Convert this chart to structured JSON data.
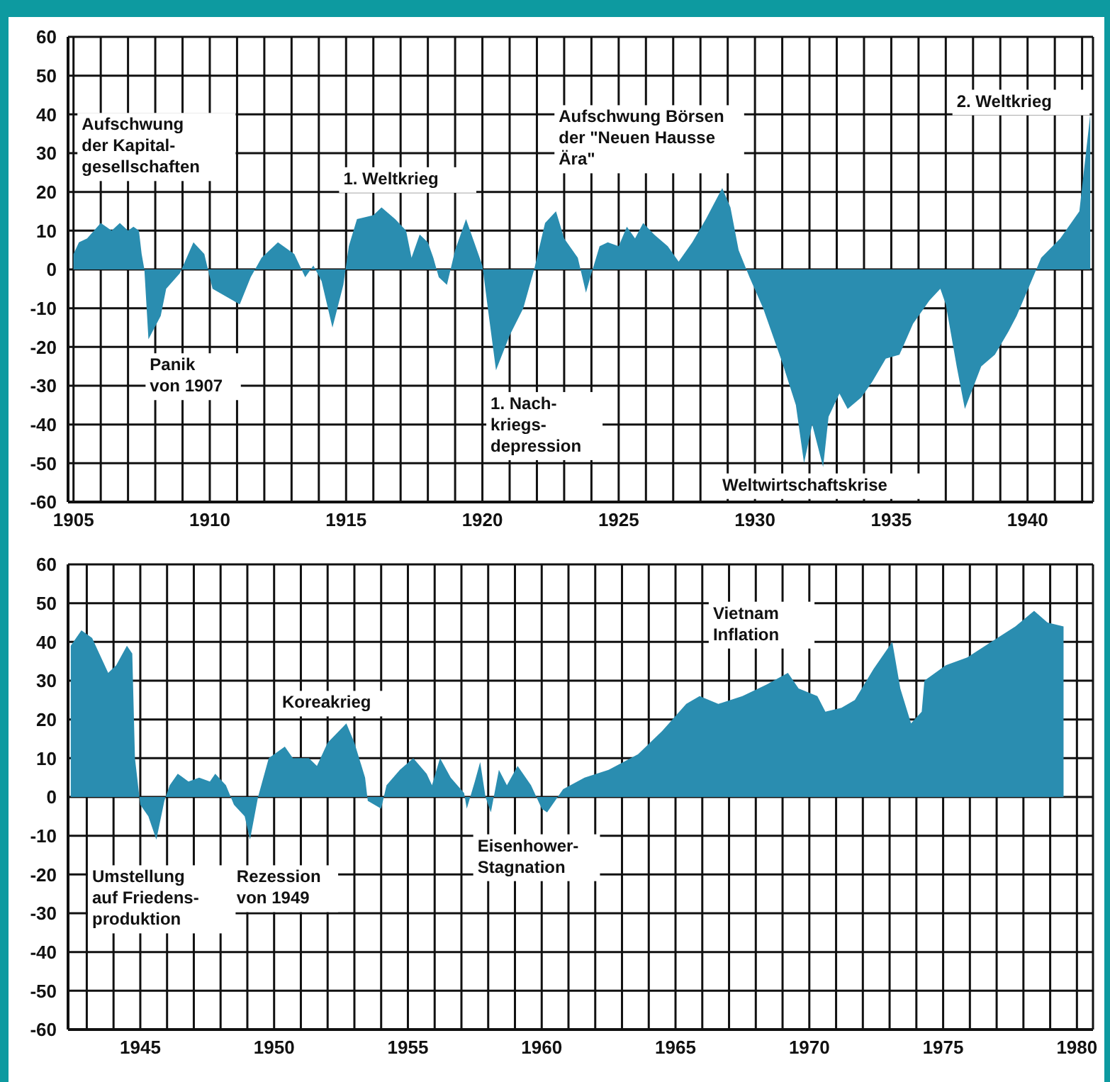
{
  "chart_data": [
    {
      "type": "area",
      "color": "#2a8db0",
      "grid": true,
      "xlim": [
        1904.8,
        1942.4
      ],
      "ylim": [
        -60,
        60
      ],
      "yticks": [
        -60,
        -50,
        -40,
        -30,
        -20,
        -10,
        0,
        10,
        20,
        30,
        40,
        50,
        60
      ],
      "xticks": [
        1905,
        {
          "value": 1906,
          "label": null
        },
        {
          "value": 1907,
          "label": null
        },
        {
          "value": 1908,
          "label": null
        },
        {
          "value": 1909,
          "label": null
        },
        1910,
        {
          "value": 1911,
          "label": null
        },
        {
          "value": 1912,
          "label": null
        },
        {
          "value": 1913,
          "label": null
        },
        {
          "value": 1914,
          "label": null
        },
        1915,
        {
          "value": 1916,
          "label": null
        },
        {
          "value": 1917,
          "label": null
        },
        {
          "value": 1918,
          "label": null
        },
        {
          "value": 1919,
          "label": null
        },
        1920,
        {
          "value": 1921,
          "label": null
        },
        {
          "value": 1922,
          "label": null
        },
        {
          "value": 1923,
          "label": null
        },
        {
          "value": 1924,
          "label": null
        },
        1925,
        {
          "value": 1926,
          "label": null
        },
        {
          "value": 1927,
          "label": null
        },
        {
          "value": 1928,
          "label": null
        },
        {
          "value": 1929,
          "label": null
        },
        1930,
        {
          "value": 1931,
          "label": null
        },
        {
          "value": 1932,
          "label": null
        },
        {
          "value": 1933,
          "label": null
        },
        {
          "value": 1934,
          "label": null
        },
        1935,
        {
          "value": 1936,
          "label": null
        },
        {
          "value": 1937,
          "label": null
        },
        {
          "value": 1938,
          "label": null
        },
        {
          "value": 1939,
          "label": null
        },
        1940,
        {
          "value": 1941,
          "label": null
        },
        {
          "value": 1942,
          "label": null
        }
      ],
      "x": [
        1905,
        1905.2,
        1905.5,
        1906,
        1906.4,
        1906.7,
        1907,
        1907.2,
        1907.4,
        1907.5,
        1907.6,
        1907.75,
        1908.2,
        1908.4,
        1908.9,
        1909.4,
        1909.8,
        1910.1,
        1910.6,
        1911.1,
        1911.5,
        1911.9,
        1912.5,
        1913.1,
        1913.5,
        1913.8,
        1914.1,
        1914.5,
        1914.9,
        1915.1,
        1915.4,
        1916,
        1916.3,
        1916.8,
        1917.2,
        1917.4,
        1917.7,
        1918,
        1918.2,
        1918.4,
        1918.7,
        1919,
        1919.4,
        1919.7,
        1920,
        1920.2,
        1920.5,
        1921,
        1921.5,
        1921.9,
        1922.3,
        1922.7,
        1923,
        1923.5,
        1923.8,
        1924,
        1924.3,
        1924.6,
        1925,
        1925.3,
        1925.6,
        1925.9,
        1926.3,
        1926.8,
        1927.2,
        1927.7,
        1928.2,
        1928.8,
        1929.1,
        1929.4,
        1929.8,
        1930.3,
        1931,
        1931.5,
        1931.8,
        1932.1,
        1932.5,
        1932.7,
        1933.1,
        1933.4,
        1933.9,
        1934.3,
        1934.8,
        1935.3,
        1935.8,
        1936.4,
        1936.8,
        1937,
        1937.4,
        1937.7,
        1938.3,
        1938.8,
        1939.3,
        1939.6,
        1940.2,
        1940.5,
        1941.2,
        1941.9,
        1942.3
      ],
      "values": [
        4,
        7,
        8,
        12,
        10,
        12,
        10,
        11,
        10,
        4,
        0,
        -18,
        -12,
        -5,
        -1,
        7,
        4,
        -5,
        -7,
        -9,
        -2,
        3,
        7,
        4,
        -2,
        1,
        -3,
        -15,
        -4,
        6,
        13,
        14,
        16,
        13,
        10,
        3,
        9,
        7,
        3,
        -2,
        -4,
        5,
        13,
        7,
        1,
        -10,
        -26,
        -17,
        -10,
        0,
        12,
        15,
        8,
        3,
        -6,
        -1,
        6,
        7,
        6,
        11,
        8,
        12,
        9,
        6,
        2,
        7,
        13,
        21,
        16,
        5,
        -2,
        -10,
        -24,
        -35,
        -50,
        -40,
        -51,
        -38,
        -32,
        -36,
        -33,
        -29,
        -23,
        -22,
        -14,
        -8,
        -5,
        -9,
        -25,
        -36,
        -25,
        -22,
        -16,
        -12,
        -2,
        3,
        8,
        15,
        40
      ],
      "annotations": [
        "Aufschwung\nder Kapital-\ngesellschaften",
        "Panik\nvon 1907",
        "1. Weltkrieg",
        "1. Nach-\nkriegs-\ndepression",
        "Aufschwung Börsen\nder \"Neuen Hausse\nÄra\"",
        "Weltwirtschaftskrise",
        "2. Weltkrieg"
      ]
    },
    {
      "type": "area",
      "color": "#2a8db0",
      "grid": true,
      "xlim": [
        1942.3,
        1980.6
      ],
      "ylim": [
        -60,
        60
      ],
      "yticks": [
        -60,
        -50,
        -40,
        -30,
        -20,
        -10,
        0,
        10,
        20,
        30,
        40,
        50,
        60
      ],
      "xticks": [
        {
          "value": 1943,
          "label": null
        },
        {
          "value": 1944,
          "label": null
        },
        1945,
        {
          "value": 1946,
          "label": null
        },
        {
          "value": 1947,
          "label": null
        },
        {
          "value": 1948,
          "label": null
        },
        {
          "value": 1949,
          "label": null
        },
        1950,
        {
          "value": 1951,
          "label": null
        },
        {
          "value": 1952,
          "label": null
        },
        {
          "value": 1953,
          "label": null
        },
        {
          "value": 1954,
          "label": null
        },
        1955,
        {
          "value": 1956,
          "label": null
        },
        {
          "value": 1957,
          "label": null
        },
        {
          "value": 1958,
          "label": null
        },
        {
          "value": 1959,
          "label": null
        },
        1960,
        {
          "value": 1961,
          "label": null
        },
        {
          "value": 1962,
          "label": null
        },
        {
          "value": 1963,
          "label": null
        },
        {
          "value": 1964,
          "label": null
        },
        1965,
        {
          "value": 1966,
          "label": null
        },
        {
          "value": 1967,
          "label": null
        },
        {
          "value": 1968,
          "label": null
        },
        {
          "value": 1969,
          "label": null
        },
        1970,
        {
          "value": 1971,
          "label": null
        },
        {
          "value": 1972,
          "label": null
        },
        {
          "value": 1973,
          "label": null
        },
        {
          "value": 1974,
          "label": null
        },
        1975,
        {
          "value": 1976,
          "label": null
        },
        {
          "value": 1977,
          "label": null
        },
        {
          "value": 1978,
          "label": null
        },
        {
          "value": 1979,
          "label": null
        },
        1980
      ],
      "x": [
        1942.4,
        1942.8,
        1943.2,
        1943.4,
        1943.8,
        1944.1,
        1944.5,
        1944.7,
        1944.8,
        1945,
        1945.3,
        1945.6,
        1945.9,
        1946.1,
        1946.4,
        1946.8,
        1947.2,
        1947.6,
        1947.8,
        1948.2,
        1948.5,
        1948.9,
        1949.1,
        1949.4,
        1949.8,
        1950.4,
        1950.7,
        1951.3,
        1951.6,
        1952,
        1952.7,
        1953,
        1953.4,
        1953.5,
        1954,
        1954.2,
        1954.7,
        1955.2,
        1955.7,
        1955.9,
        1956.2,
        1956.6,
        1957.1,
        1957.2,
        1957.5,
        1957.7,
        1957.9,
        1958.1,
        1958.4,
        1958.7,
        1959.1,
        1959.6,
        1960,
        1960.2,
        1960.8,
        1961.6,
        1962.5,
        1963.6,
        1964.5,
        1965.4,
        1965.9,
        1966.6,
        1967.5,
        1968.4,
        1969.2,
        1969.6,
        1970.3,
        1970.6,
        1971.2,
        1971.7,
        1972.4,
        1973.1,
        1973.4,
        1973.8,
        1974.2,
        1974.3,
        1975.1,
        1975.9,
        1976.8,
        1977.7,
        1978.4,
        1978.9,
        1979.5
      ],
      "values": [
        39,
        43,
        41,
        38,
        32,
        34,
        39,
        37,
        10,
        -2,
        -5,
        -11,
        -1,
        3,
        6,
        4,
        5,
        4,
        6,
        3,
        -2,
        -5,
        -11,
        0,
        10,
        13,
        10,
        10,
        8,
        14,
        19,
        14,
        5,
        -1,
        -3,
        3,
        7,
        10,
        6,
        3,
        10,
        5,
        1,
        -3,
        4,
        9,
        0,
        -4,
        7,
        3,
        8,
        3,
        -3,
        -4,
        2,
        5,
        7,
        11,
        17,
        24,
        26,
        24,
        26,
        29,
        32,
        28,
        26,
        22,
        23,
        25,
        33,
        40,
        28,
        19,
        22,
        30,
        34,
        36,
        40,
        44,
        48,
        45,
        44
      ],
      "annotations": [
        "Umstellung\nauf Friedens-\nproduktion",
        "Rezession\nvon 1949",
        "Koreakrieg",
        "Eisenhower-\nStagnation",
        "Vietnam\nInflation"
      ]
    }
  ]
}
